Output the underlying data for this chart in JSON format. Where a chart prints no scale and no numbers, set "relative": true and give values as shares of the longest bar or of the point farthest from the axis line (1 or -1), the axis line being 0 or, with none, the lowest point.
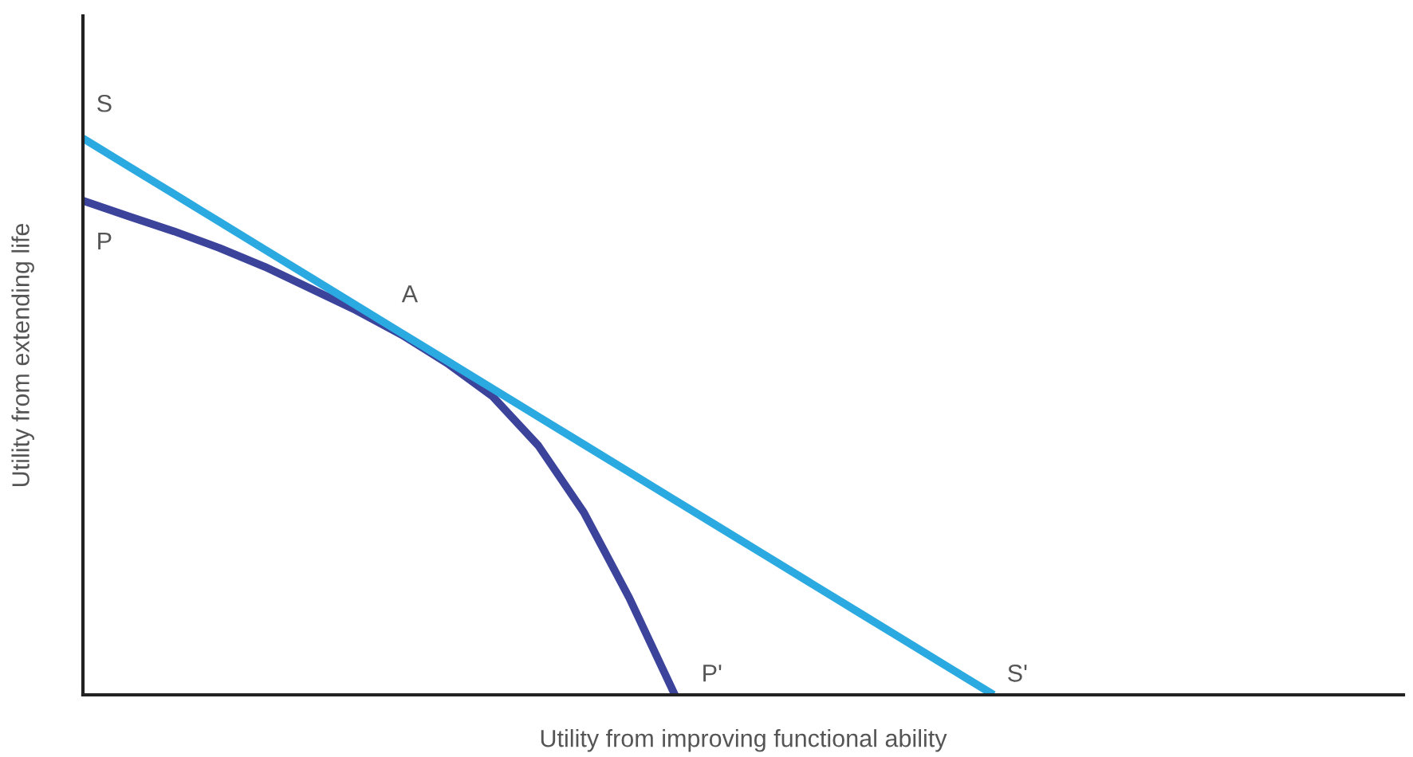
{
  "chart_data": {
    "type": "line",
    "relative": true,
    "xlabel": "Utility from improving functional ability",
    "ylabel": "Utility from extending life",
    "categories": [
      null,
      null,
      null,
      null,
      null,
      null,
      null,
      null,
      null,
      null,
      null,
      null,
      null,
      null,
      null,
      null,
      null,
      null,
      null,
      null,
      null,
      null,
      null,
      null,
      null,
      null,
      null,
      null,
      null,
      null
    ],
    "marker": "none",
    "line_style": "solid",
    "series": [
      {
        "color": "#3b439b",
        "values": [
          0.888,
          0.86,
          0.833,
          0.803,
          0.769,
          0.73,
          0.691,
          0.647,
          0.596,
          0.536,
          0.448,
          0.328,
          0.174,
          0,
          null,
          null,
          null,
          null,
          null,
          null,
          null,
          null,
          null,
          null,
          null,
          null,
          null,
          null,
          null,
          null
        ]
      },
      {
        "color": "#2aaae0",
        "values": [
          1,
          0.95,
          0.9,
          0.85,
          0.8,
          0.75,
          0.7,
          0.65,
          0.6,
          0.55,
          0.5,
          0.45,
          0.4,
          0.35,
          0.3,
          0.25,
          0.2,
          0.15,
          0.1,
          0.05,
          0,
          null,
          null,
          null,
          null,
          null,
          null,
          null,
          null,
          null
        ]
      }
    ],
    "annotations": [
      "S",
      "P",
      "A",
      "P'",
      "S'"
    ]
  }
}
